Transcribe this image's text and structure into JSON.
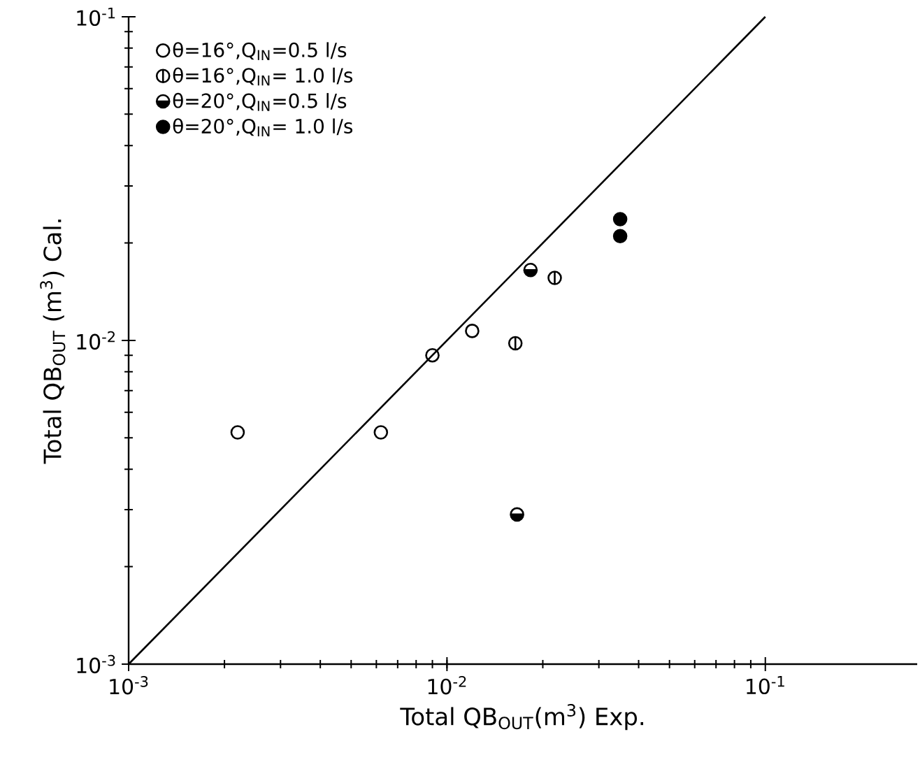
{
  "chart_data": {
    "type": "scatter",
    "xlabel": "Total QB$_{OUT}$(m$^{3}$) Exp.",
    "ylabel": "Total QB$_{OUT}$ (m$^{3}$) Cal.",
    "log": "xy",
    "grid": false,
    "legend": "top left",
    "xlim": [
      0.001,
      0.3
    ],
    "ylim": [
      0.001,
      0.1
    ],
    "xticks": [
      {
        "value": 0.001,
        "label": "10$^{-3}$"
      },
      {
        "value": 0.01,
        "label": "10$^{-2}$"
      },
      {
        "value": 0.1,
        "label": "10$^{-1}$"
      }
    ],
    "yticks": [
      {
        "value": 0.001,
        "label": "10$^{-3}$"
      },
      {
        "value": 0.01,
        "label": "10$^{-2}$"
      },
      {
        "value": 0.1,
        "label": "10$^{-1}$"
      }
    ],
    "series": [
      {
        "name": "θ=16°,Q$_{IN}$=0.5 l/s",
        "color": "#000000",
        "x": [
          0.0022,
          0.0062,
          0.009,
          0.012
        ],
        "values": [
          0.0052,
          0.0052,
          0.009,
          0.0107
        ]
      },
      {
        "name": "θ=16°,Q$_{IN}$= 1.0 l/s",
        "color": "#000000",
        "x": [
          0.0164,
          0.0218
        ],
        "values": [
          0.0098,
          0.0156
        ]
      },
      {
        "name": "θ=20°,Q$_{IN}$=0.5 l/s",
        "color": "#000000",
        "x": [
          0.0183,
          0.0166
        ],
        "values": [
          0.0165,
          0.0029
        ]
      },
      {
        "name": "θ=20°,Q$_{IN}$= 1.0 l/s",
        "color": "#000000",
        "x": [
          0.035,
          0.035
        ],
        "values": [
          0.0237,
          0.021
        ]
      },
      {
        "type": "line",
        "color": "#000000",
        "x": [
          0.001,
          0.1
        ],
        "values": [
          0.001,
          0.1
        ]
      }
    ]
  }
}
